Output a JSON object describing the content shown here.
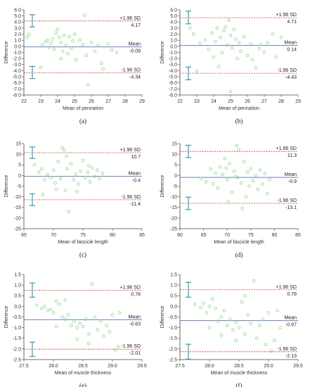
{
  "colors": {
    "points": "#8fd68f",
    "mean_line": "#6f7fb8",
    "sd_line": "#c0392b",
    "ci_bar": "#3a9bb0",
    "axis": "#444444"
  },
  "chart_data": [
    {
      "panel": "(a)",
      "type": "scatter",
      "xlabel": "Mean of pennation",
      "ylabel": "Difference",
      "xlim": [
        22,
        29
      ],
      "ylim": [
        -8,
        6
      ],
      "xticks": [
        22,
        23,
        24,
        25,
        26,
        27,
        28,
        29
      ],
      "yticks": [
        -8,
        -7,
        -6,
        -5,
        -4,
        -3,
        -2,
        -1,
        0,
        1,
        2,
        3,
        4,
        5,
        6
      ],
      "ytick_labels": [
        "-8.0",
        "-7.0",
        "-6.0",
        "-5.0",
        "-4.0",
        "-3.0",
        "-2.0",
        "-1.0",
        "0.0",
        "1.0",
        "2.0",
        "3.0",
        "4.0",
        "5.0",
        "6.0"
      ],
      "upper_loa": 4.17,
      "mean": -0.09,
      "lower_loa": -4.34,
      "upper_label": "+1.96 SD",
      "mean_label": "Mean",
      "lower_label": "-1.96 SD",
      "upper_value": "4.17",
      "mean_value": "-0.09",
      "lower_value": "-4.34",
      "upper_ci": [
        3.2,
        5.2
      ],
      "lower_ci": [
        -5.3,
        -3.3
      ],
      "points": [
        [
          22.3,
          2.0
        ],
        [
          22.2,
          1.5
        ],
        [
          23.1,
          0.3
        ],
        [
          23.3,
          0.8
        ],
        [
          23.4,
          1.0
        ],
        [
          23.5,
          -0.2
        ],
        [
          23.6,
          0.5
        ],
        [
          23.7,
          1.2
        ],
        [
          23.8,
          -0.5
        ],
        [
          23.9,
          2.2
        ],
        [
          24.0,
          2.8
        ],
        [
          24.1,
          1.5
        ],
        [
          24.2,
          0.6
        ],
        [
          24.3,
          -0.8
        ],
        [
          24.4,
          1.8
        ],
        [
          24.5,
          0.2
        ],
        [
          24.6,
          -1.2
        ],
        [
          24.7,
          1.6
        ],
        [
          24.8,
          -0.3
        ],
        [
          24.9,
          0.9
        ],
        [
          25.0,
          2.0
        ],
        [
          25.1,
          -2.2
        ],
        [
          25.3,
          1.0
        ],
        [
          25.5,
          0.3
        ],
        [
          25.6,
          5.1
        ],
        [
          25.7,
          -1.5
        ],
        [
          25.8,
          -6.3
        ],
        [
          26.0,
          0.6
        ],
        [
          26.2,
          -0.8
        ],
        [
          26.4,
          0.2
        ],
        [
          26.6,
          -2.8
        ],
        [
          26.7,
          -3.7
        ],
        [
          27.0,
          0.4
        ],
        [
          27.2,
          -0.6
        ],
        [
          27.5,
          -1.0
        ],
        [
          23.0,
          -3.5
        ],
        [
          24.2,
          -2.0
        ]
      ]
    },
    {
      "panel": "(b)",
      "type": "scatter",
      "xlabel": "Mean of pennation",
      "ylabel": "Difference",
      "xlim": [
        22,
        29
      ],
      "ylim": [
        -8,
        6
      ],
      "xticks": [
        22,
        23,
        24,
        25,
        26,
        27,
        28,
        29
      ],
      "yticks": [
        -8,
        -7,
        -6,
        -5,
        -4,
        -3,
        -2,
        -1,
        0,
        1,
        2,
        3,
        4,
        5,
        6
      ],
      "ytick_labels": [
        "-8.0",
        "-7.0",
        "-6.0",
        "-5.0",
        "-4.0",
        "-3.0",
        "-2.0",
        "-1.0",
        "0.0",
        "1.0",
        "2.0",
        "3.0",
        "4.0",
        "5.0",
        "6.0"
      ],
      "upper_loa": 4.71,
      "mean": 0.14,
      "lower_loa": -4.43,
      "upper_label": "+1.96 SD",
      "mean_label": "Mean",
      "lower_label": "-1.96 SD",
      "upper_value": "4.71",
      "mean_value": "0.14",
      "lower_value": "-4.43",
      "upper_ci": [
        3.7,
        5.8
      ],
      "lower_ci": [
        -5.5,
        -3.4
      ],
      "points": [
        [
          22.6,
          3.0
        ],
        [
          22.8,
          2.0
        ],
        [
          23.2,
          0.5
        ],
        [
          23.5,
          1.0
        ],
        [
          23.7,
          -0.5
        ],
        [
          23.9,
          2.2
        ],
        [
          24.0,
          -1.8
        ],
        [
          24.1,
          0.8
        ],
        [
          24.2,
          3.0
        ],
        [
          24.4,
          1.5
        ],
        [
          24.5,
          -1.0
        ],
        [
          24.6,
          2.6
        ],
        [
          24.7,
          3.2
        ],
        [
          24.8,
          0.2
        ],
        [
          24.9,
          4.3
        ],
        [
          25.0,
          1.8
        ],
        [
          25.1,
          -0.3
        ],
        [
          25.2,
          2.8
        ],
        [
          25.3,
          1.2
        ],
        [
          25.4,
          -2.0
        ],
        [
          25.5,
          0.6
        ],
        [
          25.6,
          -0.8
        ],
        [
          25.8,
          1.6
        ],
        [
          26.0,
          -1.5
        ],
        [
          26.2,
          0.4
        ],
        [
          26.3,
          -2.2
        ],
        [
          26.5,
          -3.5
        ],
        [
          26.7,
          -0.4
        ],
        [
          27.0,
          -1.0
        ],
        [
          27.2,
          0.6
        ],
        [
          27.5,
          2.0
        ],
        [
          27.7,
          -1.8
        ],
        [
          28.0,
          1.5
        ],
        [
          24.3,
          -3.3
        ],
        [
          25.0,
          -7.4
        ],
        [
          23.0,
          -4.1
        ],
        [
          26.8,
          0.3
        ]
      ]
    },
    {
      "panel": "(c)",
      "type": "scatter",
      "xlabel": "Mean of fascicle length",
      "ylabel": "Difference",
      "xlim": [
        65,
        85
      ],
      "ylim": [
        -25,
        15
      ],
      "xticks": [
        65,
        70,
        75,
        80,
        85
      ],
      "yticks": [
        -25,
        -20,
        -15,
        -10,
        -5,
        0,
        5,
        10,
        15
      ],
      "ytick_labels": [
        "-25",
        "-20",
        "-15",
        "-10",
        "-5",
        "0",
        "5",
        "10",
        "15"
      ],
      "upper_loa": 10.7,
      "mean": -0.4,
      "lower_loa": -11.4,
      "upper_label": "+1.96 SD",
      "mean_label": "Mean",
      "lower_label": "-1.96 SD",
      "upper_value": "10.7",
      "mean_value": "-0.4",
      "lower_value": "-11.4",
      "upper_ci": [
        8.0,
        13.4
      ],
      "lower_ci": [
        -14.1,
        -8.6
      ],
      "points": [
        [
          66.8,
          5.0
        ],
        [
          67.5,
          1.5
        ],
        [
          68.0,
          3.0
        ],
        [
          68.5,
          -2.0
        ],
        [
          69.0,
          0.5
        ],
        [
          69.5,
          -1.0
        ],
        [
          70.0,
          2.5
        ],
        [
          70.3,
          -3.5
        ],
        [
          70.8,
          6.5
        ],
        [
          71.2,
          -1.5
        ],
        [
          71.5,
          13.0
        ],
        [
          71.8,
          12.0
        ],
        [
          72.0,
          -7.0
        ],
        [
          72.3,
          3.0
        ],
        [
          72.6,
          -17.0
        ],
        [
          73.0,
          5.5
        ],
        [
          73.4,
          -2.0
        ],
        [
          73.8,
          0.5
        ],
        [
          74.2,
          -4.0
        ],
        [
          74.6,
          2.0
        ],
        [
          75.0,
          7.0
        ],
        [
          75.4,
          -1.0
        ],
        [
          75.8,
          1.5
        ],
        [
          76.2,
          -3.0
        ],
        [
          76.6,
          3.5
        ],
        [
          77.0,
          -0.5
        ],
        [
          77.4,
          2.5
        ],
        [
          77.8,
          -1.5
        ],
        [
          78.3,
          1.0
        ],
        [
          72.2,
          9.0
        ],
        [
          70.5,
          -6.5
        ],
        [
          74.0,
          -7.5
        ],
        [
          68.2,
          -9.0
        ],
        [
          76.0,
          4.5
        ]
      ]
    },
    {
      "panel": "(d)",
      "type": "scatter",
      "xlabel": "Mean of fascicle length",
      "ylabel": "Difference",
      "xlim": [
        60,
        85
      ],
      "ylim": [
        -25,
        15
      ],
      "xticks": [
        60,
        65,
        70,
        75,
        80,
        85
      ],
      "yticks": [
        -25,
        -20,
        -15,
        -10,
        -5,
        0,
        5,
        10,
        15
      ],
      "ytick_labels": [
        "-25",
        "-20",
        "-15",
        "-10",
        "-5",
        "0",
        "5",
        "10",
        "15"
      ],
      "upper_loa": 11.3,
      "mean": -0.9,
      "lower_loa": -13.1,
      "upper_label": "+1.96 SD",
      "mean_label": "Mean",
      "lower_label": "-1.96 SD",
      "upper_value": "11.3",
      "mean_value": "-0.9",
      "lower_value": "-13.1",
      "upper_ci": [
        8.4,
        14.2
      ],
      "lower_ci": [
        -16.0,
        -10.2
      ],
      "points": [
        [
          64.5,
          -1.5
        ],
        [
          65.5,
          -3.0
        ],
        [
          66.5,
          3.0
        ],
        [
          67.0,
          -4.0
        ],
        [
          67.5,
          1.0
        ],
        [
          68.0,
          -6.0
        ],
        [
          68.5,
          4.0
        ],
        [
          69.0,
          0.5
        ],
        [
          69.5,
          8.0
        ],
        [
          70.0,
          -2.0
        ],
        [
          70.5,
          5.5
        ],
        [
          71.0,
          -8.0
        ],
        [
          71.5,
          2.0
        ],
        [
          72.0,
          14.0
        ],
        [
          72.2,
          -1.0
        ],
        [
          72.5,
          12.0
        ],
        [
          73.0,
          -3.5
        ],
        [
          73.5,
          6.5
        ],
        [
          74.0,
          -10.0
        ],
        [
          74.3,
          1.5
        ],
        [
          74.7,
          -5.0
        ],
        [
          75.0,
          3.0
        ],
        [
          75.5,
          -2.5
        ],
        [
          76.0,
          0.0
        ],
        [
          76.5,
          -6.5
        ],
        [
          77.0,
          2.5
        ],
        [
          77.5,
          -4.0
        ],
        [
          78.0,
          1.0
        ],
        [
          78.5,
          -8.5
        ],
        [
          79.0,
          -2.0
        ],
        [
          70.2,
          -12.5
        ],
        [
          73.2,
          -15.5
        ],
        [
          71.8,
          -0.5
        ],
        [
          69.8,
          3.5
        ]
      ]
    },
    {
      "panel": "(e)",
      "type": "scatter",
      "xlabel": "Mean of muscle thickness",
      "ylabel": "Difference",
      "xlim": [
        27.5,
        29.5
      ],
      "ylim": [
        -2.5,
        1.5
      ],
      "xticks": [
        27.5,
        28.0,
        28.5,
        29.0,
        29.5
      ],
      "yticks": [
        -2.5,
        -2.0,
        -1.5,
        -1.0,
        -0.5,
        0.0,
        0.5,
        1.0,
        1.5
      ],
      "xtick_labels": [
        "27.5",
        "28.0",
        "28.5",
        "29.0",
        "29.5"
      ],
      "ytick_labels": [
        "-2.5",
        "-2.0",
        "-1.5",
        "-1.0",
        "-0.5",
        "0.0",
        "0.5",
        "1.0",
        "1.5"
      ],
      "upper_loa": 0.76,
      "mean": -0.63,
      "lower_loa": -2.01,
      "upper_label": "+1.96 SD",
      "mean_label": "Mean",
      "lower_label": "-1.96 SD",
      "upper_value": "0.76",
      "mean_value": "-0.63",
      "lower_value": "-2.01",
      "upper_ci": [
        0.43,
        1.1
      ],
      "lower_ci": [
        -2.35,
        -1.68
      ],
      "points": [
        [
          27.72,
          0.05
        ],
        [
          27.8,
          -0.1
        ],
        [
          27.85,
          0.0
        ],
        [
          27.9,
          -0.2
        ],
        [
          27.95,
          -0.15
        ],
        [
          28.0,
          -0.3
        ],
        [
          28.05,
          0.25
        ],
        [
          28.1,
          0.1
        ],
        [
          28.15,
          -0.5
        ],
        [
          28.2,
          -0.6
        ],
        [
          28.25,
          -0.4
        ],
        [
          28.3,
          -0.9
        ],
        [
          28.35,
          -0.7
        ],
        [
          28.4,
          -1.0
        ],
        [
          28.45,
          -0.8
        ],
        [
          28.5,
          -0.95
        ],
        [
          28.55,
          -0.6
        ],
        [
          28.6,
          -1.3
        ],
        [
          28.65,
          1.05
        ],
        [
          28.7,
          -0.5
        ],
        [
          28.75,
          -1.1
        ],
        [
          28.8,
          -0.7
        ],
        [
          28.85,
          -1.4
        ],
        [
          28.9,
          -0.9
        ],
        [
          28.95,
          -1.2
        ],
        [
          29.0,
          -0.4
        ],
        [
          29.05,
          -2.05
        ],
        [
          29.1,
          -1.9
        ],
        [
          29.12,
          -0.3
        ],
        [
          28.05,
          -0.95
        ],
        [
          28.4,
          -1.55
        ],
        [
          28.6,
          -1.75
        ],
        [
          28.2,
          0.3
        ]
      ]
    },
    {
      "panel": "(f)",
      "type": "scatter",
      "xlabel": "Mean of muscle thickness",
      "ylabel": "Difference",
      "xlim": [
        27.5,
        29.5
      ],
      "ylim": [
        -2.5,
        1.5
      ],
      "xticks": [
        27.5,
        28.0,
        28.5,
        29.0,
        29.5
      ],
      "yticks": [
        -2.5,
        -2.0,
        -1.5,
        -1.0,
        -0.5,
        0.0,
        0.5,
        1.0,
        1.5
      ],
      "xtick_labels": [
        "27.5",
        "28.0",
        "28.5",
        "29.0",
        "29.5"
      ],
      "ytick_labels": [
        "-2.5",
        "-2.0",
        "-1.5",
        "-1.0",
        "-0.5",
        "0.0",
        "0.5",
        "1.0",
        "1.5"
      ],
      "upper_loa": 0.78,
      "mean": -0.67,
      "lower_loa": -2.13,
      "upper_label": "+1.96 SD",
      "mean_label": "Mean",
      "lower_label": "-1.96 SD",
      "upper_value": "0.78",
      "mean_value": "-0.67",
      "lower_value": "-2.13",
      "upper_ci": [
        0.43,
        1.13
      ],
      "lower_ci": [
        -2.48,
        -1.78
      ],
      "points": [
        [
          27.75,
          0.1
        ],
        [
          27.85,
          -0.05
        ],
        [
          27.9,
          0.15
        ],
        [
          27.95,
          -0.3
        ],
        [
          28.0,
          0.0
        ],
        [
          28.05,
          0.35
        ],
        [
          28.1,
          -0.1
        ],
        [
          28.15,
          -0.7
        ],
        [
          28.2,
          -0.5
        ],
        [
          28.25,
          -0.2
        ],
        [
          28.3,
          -0.9
        ],
        [
          28.35,
          -0.6
        ],
        [
          28.4,
          -1.1
        ],
        [
          28.45,
          -0.75
        ],
        [
          28.5,
          -1.0
        ],
        [
          28.55,
          0.2
        ],
        [
          28.6,
          -1.3
        ],
        [
          28.65,
          -0.4
        ],
        [
          28.7,
          -0.8
        ],
        [
          28.75,
          1.2
        ],
        [
          28.8,
          -1.5
        ],
        [
          28.85,
          -0.9
        ],
        [
          28.9,
          -0.6
        ],
        [
          28.95,
          -1.8
        ],
        [
          29.0,
          -0.3
        ],
        [
          29.05,
          -2.1
        ],
        [
          29.1,
          -1.6
        ],
        [
          29.15,
          -0.2
        ],
        [
          28.2,
          -1.35
        ],
        [
          28.45,
          -1.6
        ],
        [
          28.0,
          -1.0
        ],
        [
          28.6,
          0.5
        ],
        [
          29.2,
          -1.0
        ]
      ]
    }
  ]
}
